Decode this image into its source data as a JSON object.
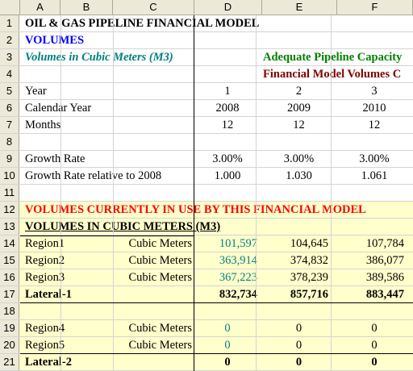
{
  "columns": [
    "",
    "A",
    "B",
    "C",
    "D",
    "E",
    "F"
  ],
  "rows": {
    "r1": {
      "num": "1",
      "title": "OIL & GAS PIPELINE FINANCIAL MODEL"
    },
    "r2": {
      "num": "2",
      "label": "VOLUMES"
    },
    "r3": {
      "num": "3",
      "label": "Volumes in Cubic Meters (M3)",
      "note": "Adequate Pipeline Capacity"
    },
    "r4": {
      "num": "4",
      "note": "Financial Model Volumes C"
    },
    "r5": {
      "num": "5",
      "label": "Year",
      "d": "1",
      "e": "2",
      "f": "3"
    },
    "r6": {
      "num": "6",
      "label": "Calendar Year",
      "d": "2008",
      "e": "2009",
      "f": "2010"
    },
    "r7": {
      "num": "7",
      "label": "Months",
      "d": "12",
      "e": "12",
      "f": "12"
    },
    "r8": {
      "num": "8"
    },
    "r9": {
      "num": "9",
      "label": "Growth Rate",
      "d": "3.00%",
      "e": "3.00%",
      "f": "3.00%"
    },
    "r10": {
      "num": "10",
      "label": "Growth Rate relative to 2008",
      "d": "1.000",
      "e": "1.030",
      "f": "1.061"
    },
    "r11": {
      "num": "11"
    },
    "r12": {
      "num": "12",
      "label": "VOLUMES CURRENTLY IN USE BY THIS FINANCIAL MODEL"
    },
    "r13": {
      "num": "13",
      "label": "VOLUMES IN CUBIC METERS (M3)"
    },
    "r14": {
      "num": "14",
      "label": "Region1",
      "unit": "Cubic Meters",
      "d": "101,597",
      "e": "104,645",
      "f": "107,784"
    },
    "r15": {
      "num": "15",
      "label": "Region2",
      "unit": "Cubic Meters",
      "d": "363,914",
      "e": "374,832",
      "f": "386,077"
    },
    "r16": {
      "num": "16",
      "label": "Region3",
      "unit": "Cubic Meters",
      "d": "367,223",
      "e": "378,239",
      "f": "389,586"
    },
    "r17": {
      "num": "17",
      "label": "Lateral-1",
      "d": "832,734",
      "e": "857,716",
      "f": "883,447"
    },
    "r18": {
      "num": "18"
    },
    "r19": {
      "num": "19",
      "label": "Region4",
      "unit": "Cubic Meters",
      "d": "0",
      "e": "0",
      "f": "0"
    },
    "r20": {
      "num": "20",
      "label": "Region5",
      "unit": "Cubic Meters",
      "d": "0",
      "e": "0",
      "f": "0"
    },
    "r21": {
      "num": "21",
      "label": "Lateral-2",
      "d": "0",
      "e": "0",
      "f": "0"
    }
  }
}
